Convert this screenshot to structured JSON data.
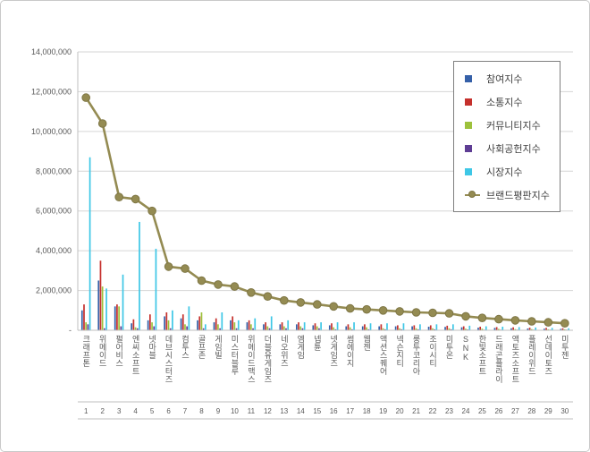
{
  "chart_data": {
    "type": "combo-bar-line",
    "title": "",
    "xlabel": "",
    "ylabel": "",
    "grid": true,
    "legend_position": "top-right",
    "categories": [
      "크래프톤",
      "위메이드",
      "펄어비스",
      "엔씨소프트",
      "넷마블",
      "데브시스터즈",
      "컴투스",
      "골프존",
      "게임빌",
      "미스터블루",
      "위메이드맥스",
      "더블유게임즈",
      "네오위즈",
      "엠게임",
      "넵튠",
      "넷게임즈",
      "썸에이지",
      "웹젠",
      "액션스퀘어",
      "넥슨지티",
      "룽투코리아",
      "조이시티",
      "미투온",
      "SNK",
      "한빛소프트",
      "드래곤플라이",
      "액토즈소프트",
      "플레이위드",
      "선데이토즈",
      "미투젠"
    ],
    "rank_labels": [
      "1",
      "2",
      "3",
      "4",
      "5",
      "6",
      "7",
      "8",
      "9",
      "10",
      "11",
      "12",
      "13",
      "14",
      "15",
      "16",
      "17",
      "18",
      "19",
      "20",
      "21",
      "22",
      "23",
      "24",
      "25",
      "26",
      "27",
      "28",
      "29",
      "30"
    ],
    "y_axis": {
      "min": 0,
      "max": 14000000,
      "step": 2000000,
      "tick_labels": [
        "-",
        "2,000,000",
        "4,000,000",
        "6,000,000",
        "8,000,000",
        "10,000,000",
        "12,000,000",
        "14,000,000"
      ]
    },
    "series": [
      {
        "name": "참여지수",
        "key": "participation-index",
        "type": "bar",
        "color": "#3560A8",
        "values": [
          1000000,
          2500000,
          1200000,
          350000,
          500000,
          700000,
          600000,
          500000,
          400000,
          500000,
          400000,
          300000,
          300000,
          300000,
          250000,
          250000,
          200000,
          200000,
          200000,
          200000,
          200000,
          180000,
          170000,
          150000,
          130000,
          120000,
          100000,
          90000,
          80000,
          70000
        ]
      },
      {
        "name": "소통지수",
        "key": "communication-index",
        "type": "bar",
        "color": "#C5302C",
        "values": [
          1300000,
          3500000,
          1300000,
          550000,
          800000,
          900000,
          800000,
          700000,
          600000,
          700000,
          500000,
          400000,
          400000,
          400000,
          350000,
          350000,
          300000,
          300000,
          300000,
          250000,
          250000,
          250000,
          230000,
          200000,
          180000,
          160000,
          150000,
          130000,
          120000,
          100000
        ]
      },
      {
        "name": "커뮤니티지수",
        "key": "community-index",
        "type": "bar",
        "color": "#9DC13C",
        "values": [
          400000,
          2200000,
          1200000,
          150000,
          400000,
          500000,
          300000,
          900000,
          300000,
          400000,
          300000,
          200000,
          200000,
          200000,
          200000,
          150000,
          150000,
          150000,
          100000,
          100000,
          100000,
          100000,
          100000,
          80000,
          80000,
          70000,
          60000,
          60000,
          50000,
          50000
        ]
      },
      {
        "name": "사회공헌지수",
        "key": "social-contribution-index",
        "type": "bar",
        "color": "#5E3D94",
        "values": [
          300000,
          100000,
          200000,
          100000,
          200000,
          100000,
          200000,
          100000,
          100000,
          100000,
          100000,
          100000,
          100000,
          100000,
          100000,
          50000,
          50000,
          50000,
          50000,
          50000,
          50000,
          50000,
          50000,
          40000,
          30000,
          30000,
          30000,
          30000,
          30000,
          30000
        ]
      },
      {
        "name": "시장지수",
        "key": "market-index",
        "type": "bar",
        "color": "#3EC7E6",
        "values": [
          8700000,
          2100000,
          2800000,
          5450000,
          4100000,
          1000000,
          1200000,
          300000,
          900000,
          500000,
          600000,
          700000,
          500000,
          400000,
          400000,
          400000,
          400000,
          350000,
          350000,
          350000,
          300000,
          300000,
          300000,
          230000,
          200000,
          180000,
          160000,
          140000,
          120000,
          100000
        ]
      },
      {
        "name": "브랜드평판지수",
        "key": "brand-reputation-index",
        "type": "line",
        "color": "#948B52",
        "marker_stroke": "#7E7645",
        "values": [
          11700000,
          10400000,
          6700000,
          6600000,
          6000000,
          3200000,
          3100000,
          2500000,
          2300000,
          2200000,
          1900000,
          1700000,
          1500000,
          1400000,
          1300000,
          1200000,
          1100000,
          1050000,
          1000000,
          950000,
          900000,
          880000,
          850000,
          700000,
          620000,
          560000,
          500000,
          450000,
          400000,
          350000
        ]
      }
    ],
    "colors": {
      "gridline": "#D6D6D6",
      "axis": "#BFBFBF",
      "tick_text": "#595959",
      "legend_border": "#7F7F7F"
    }
  }
}
